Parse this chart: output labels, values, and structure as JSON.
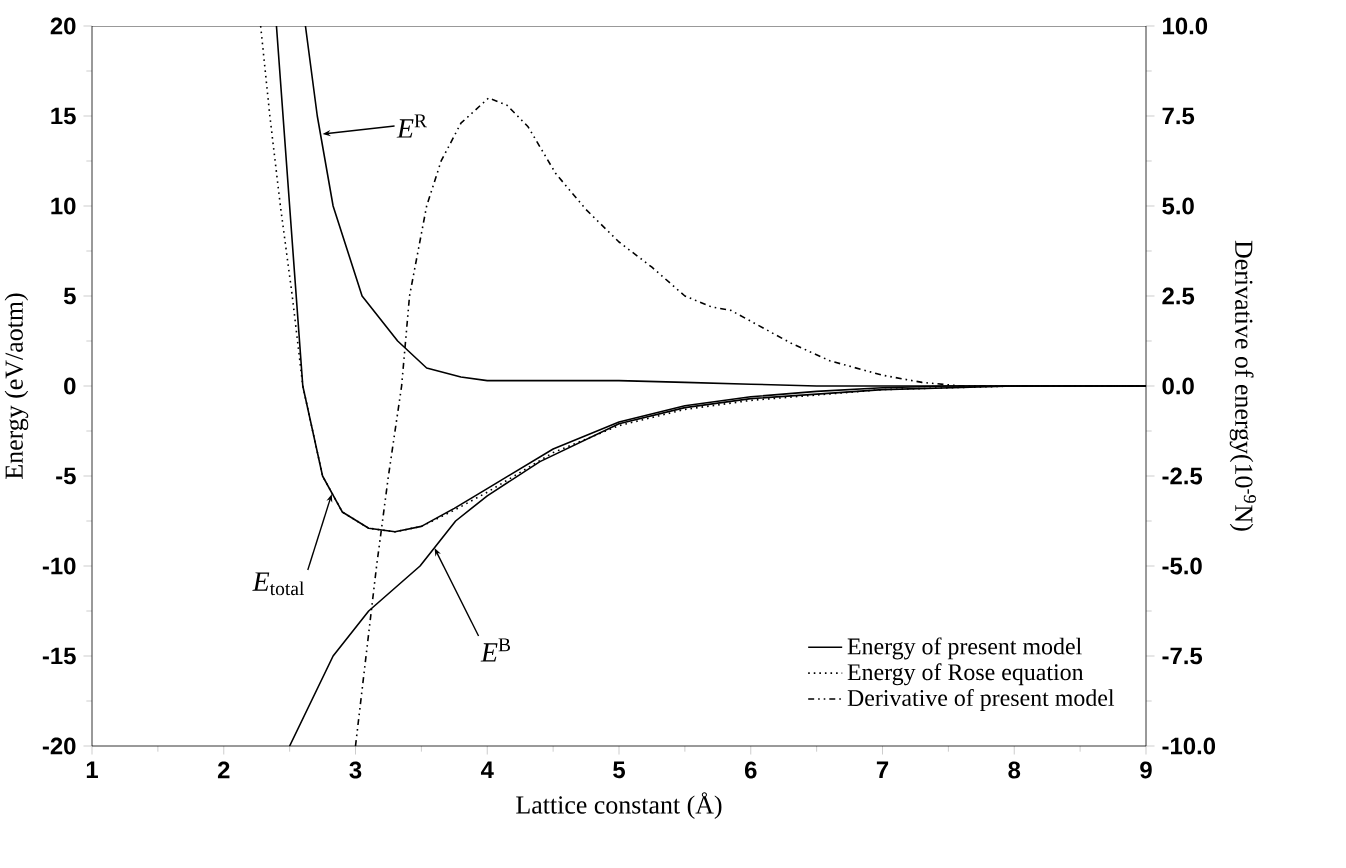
{
  "chart_data": {
    "type": "line",
    "xlabel": "Lattice constant (Å)",
    "ylabel": "Energy (eV/aotm)",
    "y2label": "Derivative of energy(10$^{-9}$N)",
    "xlim": [
      1,
      9
    ],
    "xticks": [
      1,
      2,
      3,
      4,
      5,
      6,
      7,
      8,
      9
    ],
    "ylim": [
      -20,
      20
    ],
    "yticks": [
      -20,
      -15,
      -10,
      -5,
      0,
      5,
      10,
      15,
      20
    ],
    "y2lim": [
      -10,
      10
    ],
    "y2ticks": [
      {
        "value": -10,
        "label": "-10.0"
      },
      {
        "value": -7.5,
        "label": "-7.5"
      },
      {
        "value": -5,
        "label": "-5.0"
      },
      {
        "value": -2.5,
        "label": "-2.5"
      },
      {
        "value": 0,
        "label": "0.0"
      },
      {
        "value": 2.5,
        "label": "2.5"
      },
      {
        "value": 5,
        "label": "5.0"
      },
      {
        "value": 7.5,
        "label": "7.5"
      },
      {
        "value": 10,
        "label": "10.0"
      }
    ],
    "legend": "bottom right",
    "grid": false,
    "marker": "none",
    "series": [
      {
        "name": "Energy of present model",
        "color": "#000000",
        "line_style": "solid",
        "x": [
          2.4,
          2.45,
          2.5,
          2.55,
          2.6,
          2.75,
          2.9,
          3.1,
          3.3,
          3.5,
          3.75,
          4.0,
          4.5,
          5.0,
          5.5,
          6.0,
          6.5,
          7.0,
          7.5,
          9
        ],
        "values": [
          20,
          15,
          10,
          5,
          0,
          -5,
          -7,
          -7.9,
          -8.1,
          -7.8,
          -6.8,
          -5.7,
          -3.5,
          -2.0,
          -1.1,
          -0.6,
          -0.3,
          -0.1,
          0,
          0
        ]
      },
      {
        "name": "Energy of Rose equation",
        "color": "#000000",
        "line_style": "dotted",
        "x": [
          2.28,
          2.35,
          2.43,
          2.52,
          2.6,
          2.75,
          2.9,
          3.1,
          3.3,
          3.5,
          3.75,
          4.0,
          4.5,
          5.0,
          5.5,
          6.0,
          7.0,
          8.0,
          9
        ],
        "values": [
          20,
          15,
          10,
          5,
          0,
          -5,
          -7,
          -7.9,
          -8.1,
          -7.8,
          -6.9,
          -5.9,
          -3.7,
          -2.2,
          -1.3,
          -0.8,
          -0.2,
          0,
          0
        ]
      },
      {
        "name": "Derivative of present model",
        "color": "#000000",
        "line_style": "dashdot",
        "axis": "y2",
        "x": [
          3.0,
          3.08,
          3.16,
          3.25,
          3.35,
          3.41,
          3.54,
          3.65,
          3.8,
          4.01,
          4.15,
          4.31,
          4.52,
          4.75,
          5.0,
          5.25,
          5.5,
          5.7,
          5.85,
          6.0,
          6.3,
          6.6,
          7.0,
          7.3,
          7.6,
          9
        ],
        "values": [
          -10,
          -7.5,
          -5,
          -2.5,
          0,
          2.5,
          5,
          6.25,
          7.3,
          8.0,
          7.8,
          7.2,
          5.9,
          4.9,
          4.0,
          3.3,
          2.5,
          2.2,
          2.1,
          1.8,
          1.2,
          0.7,
          0.3,
          0.1,
          0,
          0
        ]
      },
      {
        "color": "#000000",
        "line_style": "solid",
        "x": [
          2.62,
          2.71,
          2.83,
          3.05,
          3.32,
          3.54,
          3.8,
          4.0,
          5.0,
          5.5,
          6.0,
          6.5,
          9
        ],
        "values": [
          20,
          15,
          10,
          5,
          2.5,
          1,
          0.5,
          0.3,
          0.3,
          0.2,
          0.1,
          0,
          0
        ]
      },
      {
        "color": "#000000",
        "line_style": "solid",
        "x": [
          2.5,
          2.83,
          3.1,
          3.49,
          3.76,
          4.0,
          4.4,
          5.0,
          5.5,
          6.0,
          7.0,
          8.0,
          9
        ],
        "values": [
          -20,
          -15,
          -12.5,
          -10,
          -7.5,
          -6.1,
          -4.2,
          -2.1,
          -1.2,
          -0.7,
          -0.2,
          0,
          0
        ]
      }
    ],
    "annotations": [
      {
        "text": "*E*$^{R}$",
        "x": 2.75,
        "y": 14
      },
      {
        "text": "*E*$_{total}$",
        "x": 2.82,
        "y": -6
      },
      {
        "text": "*E*$^{B}$",
        "x": 3.6,
        "y": -9
      }
    ]
  }
}
